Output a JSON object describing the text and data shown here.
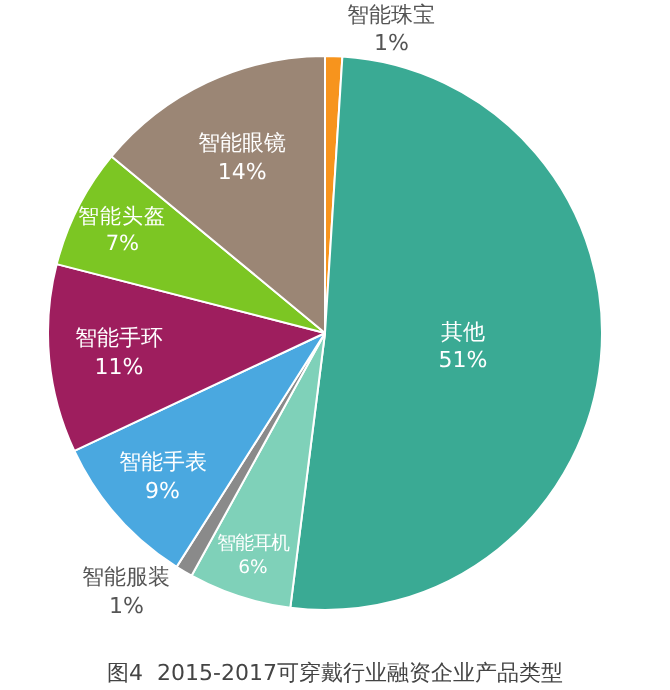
{
  "chart_data": {
    "type": "pie",
    "title": "图4  2015-2017可穿戴行业融资企业产品类型",
    "categories": [
      "智能珠宝",
      "其他",
      "智能耳机",
      "智能服装",
      "智能手表",
      "智能手环",
      "智能头盔",
      "智能眼镜"
    ],
    "values": [
      1,
      51,
      6,
      1,
      9,
      11,
      7,
      14
    ],
    "value_labels": [
      "1%",
      "51%",
      "6%",
      "1%",
      "9%",
      "11%",
      "7%",
      "14%"
    ],
    "colors": [
      "#f7941d",
      "#3aaa94",
      "#7fd1b9",
      "#8a8a8a",
      "#4aa8e0",
      "#9e1e5e",
      "#7cc623",
      "#9b8675"
    ],
    "legend": false
  }
}
